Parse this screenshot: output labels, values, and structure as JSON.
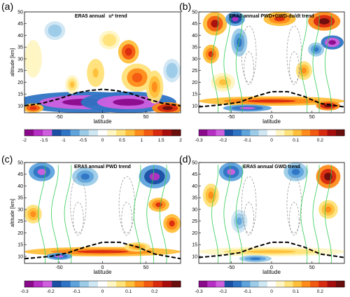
{
  "figure": {
    "panels": [
      {
        "id": "a",
        "letter": "(a)",
        "title": "ERA5 annual",
        "title_suffix": "u* trend",
        "ylabel": "altitude [km]",
        "xlabel": "latitude",
        "xticks": [
          "-50",
          "0",
          "50"
        ],
        "yticks": [
          "10",
          "15",
          "20",
          "25",
          "30",
          "35",
          "40",
          "45",
          "50"
        ],
        "cbar_ticks": [
          "-2",
          "-1.5",
          "-1",
          "-0.5",
          "0",
          "0.5",
          "1",
          "1.5",
          "2"
        ],
        "cbar_range": [
          -2,
          2
        ],
        "dashed_line_color": "#000000"
      },
      {
        "id": "b",
        "letter": "(b)",
        "title": "ERA5 annual PWD+GWD-du/dt trend",
        "ylabel": "",
        "xlabel": "latitude",
        "xticks": [
          "-50",
          "0",
          "50"
        ],
        "yticks": [
          "10",
          "15",
          "20",
          "25",
          "30",
          "35",
          "40",
          "45",
          "50"
        ],
        "cbar_ticks": [
          "-0.3",
          "-0.2",
          "-0.1",
          "0",
          "0.1",
          "0.2"
        ],
        "cbar_range": [
          -0.3,
          0.3
        ],
        "dashed_line_color": "#000000"
      },
      {
        "id": "c",
        "letter": "(c)",
        "title": "ERA5 annual PWD trend",
        "ylabel": "altitude [km]",
        "xlabel": "latitude",
        "xticks": [
          "-50",
          "0",
          "50"
        ],
        "yticks": [
          "10",
          "15",
          "20",
          "25",
          "30",
          "35",
          "40",
          "45",
          "50"
        ],
        "cbar_ticks": [
          "-0.3",
          "-0.2",
          "-0.1",
          "0",
          "0.1",
          "0.2"
        ],
        "cbar_range": [
          -0.3,
          0.3
        ],
        "dashed_line_color": "#000000"
      },
      {
        "id": "d",
        "letter": "(d)",
        "title": "ERA5 annual GWD trend",
        "ylabel": "",
        "xlabel": "latitude",
        "xticks": [
          "-50",
          "0",
          "50"
        ],
        "yticks": [
          "10",
          "15",
          "20",
          "25",
          "30",
          "35",
          "40",
          "45",
          "50"
        ],
        "cbar_ticks": [
          "-0.3",
          "-0.2",
          "-0.1",
          "0",
          "0.1",
          "0.2"
        ],
        "cbar_range": [
          -0.3,
          0.3
        ],
        "dashed_line_color": "#000000"
      }
    ]
  },
  "colors": {
    "palette": [
      "#8b0a8b",
      "#b62fc4",
      "#d05fe0",
      "#1a4fa3",
      "#2f74c4",
      "#5fa3dc",
      "#9ccbe8",
      "#cfe6f3",
      "#ffffff",
      "#fff6c4",
      "#ffe27a",
      "#ffbf3a",
      "#ff8c1a",
      "#f25a12",
      "#d92a10",
      "#a80d0d",
      "#6a0e0e"
    ],
    "green_contour": "#33cc55",
    "gray_contour": "#9a9a9a"
  },
  "chart_data": [
    {
      "type": "heatmap",
      "panel": "a",
      "title": "ERA5 annual u* trend",
      "xlabel": "latitude",
      "ylabel": "altitude [km]",
      "xlim": [
        -90,
        90
      ],
      "ylim": [
        7,
        50
      ],
      "colorbar_range": [
        -2,
        2
      ],
      "tropopause_line": {
        "x": [
          -90,
          -70,
          -50,
          -30,
          -15,
          0,
          15,
          30,
          50,
          70,
          90
        ],
        "y": [
          10,
          11,
          13,
          15.5,
          16.5,
          17,
          16.5,
          15.5,
          13,
          11,
          10
        ]
      },
      "blobs": [
        {
          "x": -20,
          "y": 11.5,
          "rx": 80,
          "ry": 4.5,
          "v": -2
        },
        {
          "x": 30,
          "y": 11.5,
          "rx": 55,
          "ry": 4.5,
          "v": -2
        },
        {
          "x": 75,
          "y": 9,
          "rx": 18,
          "ry": 2.5,
          "v": 2
        },
        {
          "x": -80,
          "y": 9,
          "rx": 12,
          "ry": 2,
          "v": 1.5
        },
        {
          "x": 30,
          "y": 33,
          "rx": 12,
          "ry": 5,
          "v": 1.5
        },
        {
          "x": 40,
          "y": 22,
          "rx": 18,
          "ry": 6,
          "v": 1.2
        },
        {
          "x": 60,
          "y": 18,
          "rx": 10,
          "ry": 7,
          "v": 1
        },
        {
          "x": -8,
          "y": 24,
          "rx": 10,
          "ry": 6,
          "v": 0.8
        },
        {
          "x": -35,
          "y": 19,
          "rx": 8,
          "ry": 4,
          "v": 0.6
        },
        {
          "x": 8,
          "y": 38,
          "rx": 12,
          "ry": 4,
          "v": 0.5
        },
        {
          "x": -55,
          "y": 42,
          "rx": 12,
          "ry": 4,
          "v": -0.5
        },
        {
          "x": 80,
          "y": 25,
          "rx": 10,
          "ry": 5,
          "v": -0.5
        },
        {
          "x": -80,
          "y": 30,
          "rx": 10,
          "ry": 8,
          "v": 0.3
        }
      ]
    },
    {
      "type": "heatmap",
      "panel": "b",
      "title": "ERA5 annual PWD+GWD-du/dt trend",
      "xlabel": "latitude",
      "ylabel": "altitude [km]",
      "xlim": [
        -90,
        90
      ],
      "ylim": [
        7,
        50
      ],
      "colorbar_range": [
        -0.3,
        0.3
      ],
      "tropopause_line": {
        "x": [
          -90,
          -60,
          -40,
          -20,
          0,
          20,
          40,
          60,
          90
        ],
        "y": [
          9.5,
          10.5,
          11.5,
          14,
          16,
          16,
          14,
          11,
          9.5
        ]
      },
      "blobs": [
        {
          "x": -70,
          "y": 45,
          "rx": 15,
          "ry": 5,
          "v": 0.25
        },
        {
          "x": -45,
          "y": 47,
          "rx": 12,
          "ry": 3,
          "v": -0.25
        },
        {
          "x": 10,
          "y": 47,
          "rx": 20,
          "ry": 3,
          "v": 0.2
        },
        {
          "x": 65,
          "y": 46,
          "rx": 20,
          "ry": 4,
          "v": 0.3
        },
        {
          "x": 75,
          "y": 37,
          "rx": 14,
          "ry": 3,
          "v": -0.3
        },
        {
          "x": 55,
          "y": 34,
          "rx": 10,
          "ry": 3,
          "v": -0.15
        },
        {
          "x": -75,
          "y": 32,
          "rx": 10,
          "ry": 4,
          "v": 0.2
        },
        {
          "x": -40,
          "y": 37,
          "rx": 10,
          "ry": 6,
          "v": -0.15
        },
        {
          "x": 40,
          "y": 25,
          "rx": 10,
          "ry": 4,
          "v": 0.15
        },
        {
          "x": -60,
          "y": 20,
          "rx": 15,
          "ry": 4,
          "v": 0.1
        },
        {
          "x": 0,
          "y": 12,
          "rx": 90,
          "ry": 2,
          "v": 0.2
        },
        {
          "x": -30,
          "y": 9,
          "rx": 30,
          "ry": 1.5,
          "v": -0.2
        },
        {
          "x": 70,
          "y": 10,
          "rx": 15,
          "ry": 2,
          "v": 0.3
        }
      ]
    },
    {
      "type": "heatmap",
      "panel": "c",
      "title": "ERA5 annual PWD trend",
      "xlabel": "latitude",
      "ylabel": "altitude [km]",
      "xlim": [
        -90,
        90
      ],
      "ylim": [
        7,
        50
      ],
      "colorbar_range": [
        -0.3,
        0.3
      ],
      "tropopause_line": {
        "x": [
          -90,
          -60,
          -40,
          -20,
          0,
          20,
          40,
          60,
          90
        ],
        "y": [
          9,
          10,
          11.5,
          14,
          16,
          16,
          14,
          11,
          9
        ]
      },
      "blobs": [
        {
          "x": -70,
          "y": 46,
          "rx": 15,
          "ry": 4,
          "v": -0.2
        },
        {
          "x": -20,
          "y": 44,
          "rx": 15,
          "ry": 4,
          "v": -0.15
        },
        {
          "x": 60,
          "y": 44,
          "rx": 18,
          "ry": 5,
          "v": -0.25
        },
        {
          "x": 65,
          "y": 32,
          "rx": 12,
          "ry": 3,
          "v": 0.2
        },
        {
          "x": 80,
          "y": 24,
          "rx": 10,
          "ry": 4,
          "v": 0.2
        },
        {
          "x": -80,
          "y": 28,
          "rx": 10,
          "ry": 4,
          "v": 0.15
        },
        {
          "x": 0,
          "y": 12,
          "rx": 90,
          "ry": 2,
          "v": 0.2
        },
        {
          "x": -50,
          "y": 10,
          "rx": 15,
          "ry": 1.5,
          "v": -0.2
        },
        {
          "x": 40,
          "y": 14,
          "rx": 15,
          "ry": 2,
          "v": 0.15
        }
      ]
    },
    {
      "type": "heatmap",
      "panel": "d",
      "title": "ERA5 annual GWD trend",
      "xlabel": "latitude",
      "ylabel": "altitude [km]",
      "xlim": [
        -90,
        90
      ],
      "ylim": [
        7,
        50
      ],
      "colorbar_range": [
        -0.3,
        0.3
      ],
      "tropopause_line": {
        "x": [
          -90,
          -60,
          -40,
          -20,
          0,
          20,
          40,
          60,
          90
        ],
        "y": [
          9.5,
          10.5,
          11.5,
          14,
          16,
          16,
          14,
          11,
          9.5
        ]
      },
      "blobs": [
        {
          "x": 70,
          "y": 44,
          "rx": 15,
          "ry": 5,
          "v": 0.3
        },
        {
          "x": -50,
          "y": 46,
          "rx": 15,
          "ry": 4,
          "v": -0.2
        },
        {
          "x": 30,
          "y": 46,
          "rx": 15,
          "ry": 4,
          "v": -0.15
        },
        {
          "x": -75,
          "y": 36,
          "rx": 10,
          "ry": 5,
          "v": 0.15
        },
        {
          "x": 70,
          "y": 30,
          "rx": 12,
          "ry": 4,
          "v": 0.15
        },
        {
          "x": -40,
          "y": 25,
          "rx": 10,
          "ry": 5,
          "v": -0.1
        },
        {
          "x": 0,
          "y": 12,
          "rx": 90,
          "ry": 2,
          "v": 0.1
        },
        {
          "x": -20,
          "y": 9,
          "rx": 20,
          "ry": 1.5,
          "v": -0.15
        }
      ]
    }
  ]
}
